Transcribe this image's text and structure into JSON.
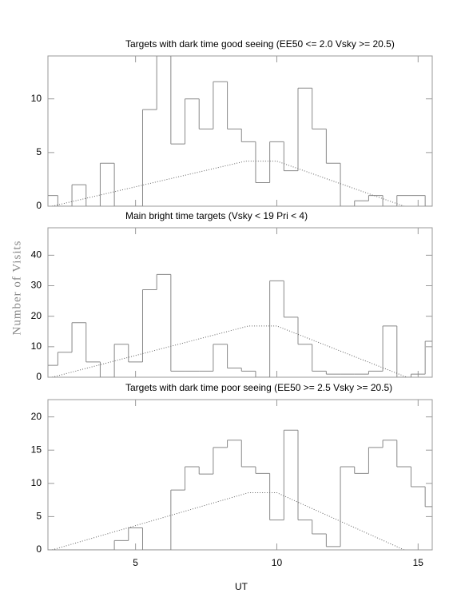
{
  "y_label": "Number of Visits",
  "x_label": "UT",
  "chart_data": [
    {
      "type": "histogram",
      "title": "Targets with dark time good seeing (EE50 <= 2.0 Vsky >= 20.5)",
      "bins": [
        1.75,
        2.25,
        2.75,
        3.25,
        3.75,
        4.25,
        4.75,
        5.25,
        5.75,
        6.25,
        6.75,
        7.25,
        7.75,
        8.25,
        8.75,
        9.25,
        9.75,
        10.25,
        10.75,
        11.25,
        11.75,
        12.25,
        12.75,
        13.25,
        13.75,
        14.25,
        14.75,
        15.25,
        15.75
      ],
      "values": [
        1,
        0,
        2,
        0,
        4,
        0,
        0,
        9,
        14,
        5.8,
        10,
        7.2,
        11.6,
        7.2,
        6,
        2.2,
        6,
        3.3,
        11,
        7.2,
        4,
        0,
        0.5,
        1,
        0,
        1,
        1,
        0
      ],
      "color": "#888888",
      "line": {
        "x": [
          2.05,
          8.9,
          10,
          14.5
        ],
        "values": [
          0,
          4.2,
          4.2,
          0
        ],
        "color": "#666666"
      },
      "xlim": [
        1.9,
        15.5
      ],
      "xticks": [
        5,
        10,
        15
      ],
      "ylim": [
        0,
        14
      ],
      "yticks": [
        0,
        5,
        10
      ]
    },
    {
      "type": "histogram",
      "title": "Main bright time targets (Vsky < 19 Pri < 4)",
      "bins": [
        1.75,
        2.25,
        2.75,
        3.25,
        3.75,
        4.25,
        4.75,
        5.25,
        5.75,
        6.25,
        6.75,
        7.25,
        7.75,
        8.25,
        8.75,
        9.25,
        9.75,
        10.25,
        10.75,
        11.25,
        11.75,
        12.25,
        12.75,
        13.25,
        13.75,
        14.25,
        14.75,
        15.25,
        15.75
      ],
      "values": [
        3.9,
        8.2,
        17.9,
        5,
        0,
        10.8,
        5,
        28.7,
        33.7,
        2,
        2,
        2,
        10.8,
        3,
        2,
        0,
        31.6,
        19.7,
        10.8,
        2,
        1,
        1,
        1,
        2,
        16.8,
        0,
        1,
        11.8
      ],
      "color": "#888888",
      "line": {
        "x": [
          2.05,
          9,
          10,
          14.6
        ],
        "values": [
          0,
          16.8,
          16.8,
          0
        ],
        "color": "#666666"
      },
      "xlim": [
        1.9,
        15.5
      ],
      "xticks": [
        5,
        10,
        15
      ],
      "ylim": [
        0,
        49
      ],
      "yticks": [
        0,
        10,
        20,
        30,
        40
      ]
    },
    {
      "type": "histogram",
      "title": "Targets with dark time poor seeing (EE50 >= 2.5 Vsky >= 20.5)",
      "bins": [
        1.75,
        2.25,
        2.75,
        3.25,
        3.75,
        4.25,
        4.75,
        5.25,
        5.75,
        6.25,
        6.75,
        7.25,
        7.75,
        8.25,
        8.75,
        9.25,
        9.75,
        10.25,
        10.75,
        11.25,
        11.75,
        12.25,
        12.75,
        13.25,
        13.75,
        14.25,
        14.75,
        15.25,
        15.75
      ],
      "values": [
        0,
        0,
        0,
        0,
        0,
        1.4,
        3.3,
        0,
        0,
        9,
        12.5,
        11.4,
        15.4,
        16.5,
        12.5,
        11.5,
        4.5,
        18,
        4.5,
        2.4,
        0.5,
        12.5,
        11.5,
        15.4,
        16.5,
        12.5,
        9.5,
        6.5
      ],
      "color": "#888888",
      "line": {
        "x": [
          2.05,
          9,
          10,
          14.5
        ],
        "values": [
          0,
          8.6,
          8.6,
          0
        ],
        "color": "#666666"
      },
      "xlim": [
        1.9,
        15.5
      ],
      "xticks": [
        5,
        10,
        15
      ],
      "ylim": [
        0,
        22.6
      ],
      "yticks": [
        0,
        5,
        10,
        15,
        20
      ]
    }
  ]
}
